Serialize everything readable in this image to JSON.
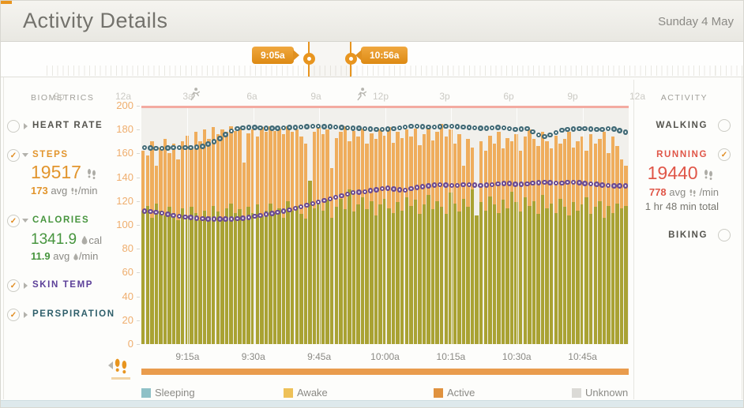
{
  "header": {
    "title": "Activity Details",
    "date": "Sunday 4 May"
  },
  "timeline": {
    "hour_labels": [
      "9p",
      "12a",
      "3a",
      "6a",
      "9a",
      "12p",
      "3p",
      "6p",
      "9p",
      "12a"
    ],
    "markers": [
      {
        "label": "9:05a"
      },
      {
        "label": "10:56a"
      }
    ]
  },
  "biometrics": {
    "title": "BIOMETRICS",
    "heart_rate": {
      "label": "HEART RATE"
    },
    "steps": {
      "label": "STEPS",
      "value": "19517",
      "avg": "173",
      "avg_word": "avg",
      "per_min": "/min"
    },
    "calories": {
      "label": "CALORIES",
      "value": "1341.9",
      "unit": "cal",
      "avg": "11.9",
      "avg_word": "avg",
      "per_min": "/min"
    },
    "skin_temp": {
      "label": "SKIN TEMP"
    },
    "perspiration": {
      "label": "PERSPIRATION"
    }
  },
  "activity": {
    "title": "ACTIVITY",
    "walking": {
      "label": "WALKING"
    },
    "running": {
      "label": "RUNNING",
      "value": "19440",
      "avg": "778",
      "avg_word": "avg",
      "per_min": "/min",
      "total": "1 hr 48 min total"
    },
    "biking": {
      "label": "BIKING"
    }
  },
  "legend": {
    "items": [
      {
        "label": "Sleeping",
        "color": "#8fc1c7"
      },
      {
        "label": "Awake",
        "color": "#eec158"
      },
      {
        "label": "Active",
        "color": "#e0923f"
      },
      {
        "label": "Unknown",
        "color": "#dbdad6"
      }
    ]
  },
  "chart_data": {
    "type": "bar",
    "title": "Per-minute activity chart",
    "x_window": {
      "start": "9:05a",
      "end": "10:56a",
      "minutes": 111
    },
    "xtick_labels": [
      {
        "label": "9:15a",
        "minute": 10
      },
      {
        "label": "9:30a",
        "minute": 25
      },
      {
        "label": "9:45a",
        "minute": 40
      },
      {
        "label": "10:00a",
        "minute": 55
      },
      {
        "label": "10:15a",
        "minute": 70
      },
      {
        "label": "10:30a",
        "minute": 85
      },
      {
        "label": "10:45a",
        "minute": 100
      }
    ],
    "ylim": [
      0,
      200
    ],
    "yticks": [
      0,
      20,
      40,
      60,
      80,
      100,
      120,
      140,
      160,
      180,
      200
    ],
    "y_axis_unit": "steps",
    "ceiling_line": {
      "value": 200,
      "color": "#f3aba1"
    },
    "activity_markers": [
      {
        "icon": "runner",
        "minute": 12
      },
      {
        "icon": "runner",
        "minute": 50
      }
    ],
    "state_strip": {
      "color": "#e99c4d",
      "label": "Active"
    },
    "series": [
      {
        "name": "steps",
        "type": "bar",
        "color": "#efad5c",
        "values": [
          162,
          158,
          170,
          150,
          165,
          172,
          160,
          168,
          155,
          170,
          175,
          165,
          178,
          170,
          180,
          172,
          182,
          176,
          180,
          178,
          183,
          179,
          181,
          152,
          177,
          180,
          174,
          182,
          178,
          183,
          179,
          181,
          176,
          183,
          178,
          180,
          174,
          168,
          90,
          178,
          182,
          176,
          180,
          148,
          173,
          178,
          183,
          170,
          179,
          174,
          181,
          168,
          177,
          172,
          180,
          175,
          182,
          169,
          178,
          173,
          180,
          174,
          181,
          167,
          176,
          183,
          171,
          178,
          185,
          174,
          180,
          168,
          176,
          150,
          172,
          165,
          90,
          170,
          162,
          175,
          168,
          178,
          164,
          173,
          170,
          176,
          162,
          174,
          180,
          172,
          166,
          178,
          170,
          164,
          175,
          168,
          172,
          178,
          165,
          170,
          174,
          162,
          176,
          168,
          172,
          178,
          160,
          174,
          166,
          155,
          150
        ]
      },
      {
        "name": "calories",
        "type": "bar",
        "color": "#a9a233",
        "values": [
          112,
          116,
          106,
          118,
          112,
          108,
          115,
          110,
          104,
          114,
          108,
          115,
          110,
          104,
          112,
          107,
          116,
          111,
          105,
          114,
          118,
          110,
          113,
          104,
          115,
          110,
          117,
          107,
          112,
          118,
          110,
          114,
          106,
          120,
          112,
          116,
          109,
          105,
          137,
          114,
          118,
          112,
          121,
          106,
          115,
          122,
          113,
          130,
          111,
          117,
          123,
          113,
          120,
          108,
          117,
          122,
          114,
          110,
          119,
          112,
          123,
          116,
          121,
          109,
          117,
          125,
          113,
          120,
          115,
          109,
          127,
          118,
          111,
          122,
          115,
          130,
          108,
          119,
          112,
          124,
          117,
          110,
          121,
          114,
          128,
          119,
          111,
          123,
          116,
          120,
          109,
          125,
          114,
          118,
          110,
          122,
          115,
          108,
          119,
          112,
          117,
          123,
          109,
          115,
          120,
          106,
          116,
          110,
          118,
          114,
          116
        ]
      },
      {
        "name": "skin_temp",
        "type": "dotted-line",
        "color": "#6b4a92",
        "points": [
          [
            0,
            112
          ],
          [
            3,
            111
          ],
          [
            6,
            109
          ],
          [
            9,
            107
          ],
          [
            12,
            106
          ],
          [
            15,
            105
          ],
          [
            18,
            105
          ],
          [
            21,
            105
          ],
          [
            24,
            106
          ],
          [
            27,
            108
          ],
          [
            30,
            110
          ],
          [
            33,
            112
          ],
          [
            36,
            115
          ],
          [
            39,
            118
          ],
          [
            42,
            121
          ],
          [
            45,
            124
          ],
          [
            48,
            127
          ],
          [
            51,
            128
          ],
          [
            54,
            130
          ],
          [
            56,
            131
          ],
          [
            58,
            130
          ],
          [
            60,
            129
          ],
          [
            62,
            131
          ],
          [
            64,
            132
          ],
          [
            66,
            133
          ],
          [
            68,
            134
          ],
          [
            71,
            133
          ],
          [
            74,
            134
          ],
          [
            77,
            133
          ],
          [
            80,
            134
          ],
          [
            83,
            135
          ],
          [
            86,
            134
          ],
          [
            89,
            135
          ],
          [
            92,
            136
          ],
          [
            95,
            135
          ],
          [
            98,
            136
          ],
          [
            101,
            135
          ],
          [
            104,
            134
          ],
          [
            107,
            133
          ],
          [
            110,
            133
          ]
        ]
      },
      {
        "name": "perspiration",
        "type": "dotted-line",
        "color": "#416a76",
        "points": [
          [
            0,
            165
          ],
          [
            4,
            164
          ],
          [
            8,
            165
          ],
          [
            12,
            165
          ],
          [
            14,
            166
          ],
          [
            16,
            169
          ],
          [
            18,
            173
          ],
          [
            20,
            178
          ],
          [
            22,
            181
          ],
          [
            25,
            182
          ],
          [
            30,
            181
          ],
          [
            35,
            182
          ],
          [
            40,
            183
          ],
          [
            45,
            182
          ],
          [
            50,
            181
          ],
          [
            55,
            180
          ],
          [
            58,
            181
          ],
          [
            62,
            183
          ],
          [
            66,
            182
          ],
          [
            70,
            183
          ],
          [
            74,
            182
          ],
          [
            78,
            181
          ],
          [
            82,
            182
          ],
          [
            85,
            180
          ],
          [
            88,
            181
          ],
          [
            90,
            176
          ],
          [
            92,
            174
          ],
          [
            94,
            177
          ],
          [
            96,
            180
          ],
          [
            100,
            181
          ],
          [
            104,
            180
          ],
          [
            107,
            181
          ],
          [
            110,
            178
          ]
        ]
      }
    ]
  }
}
